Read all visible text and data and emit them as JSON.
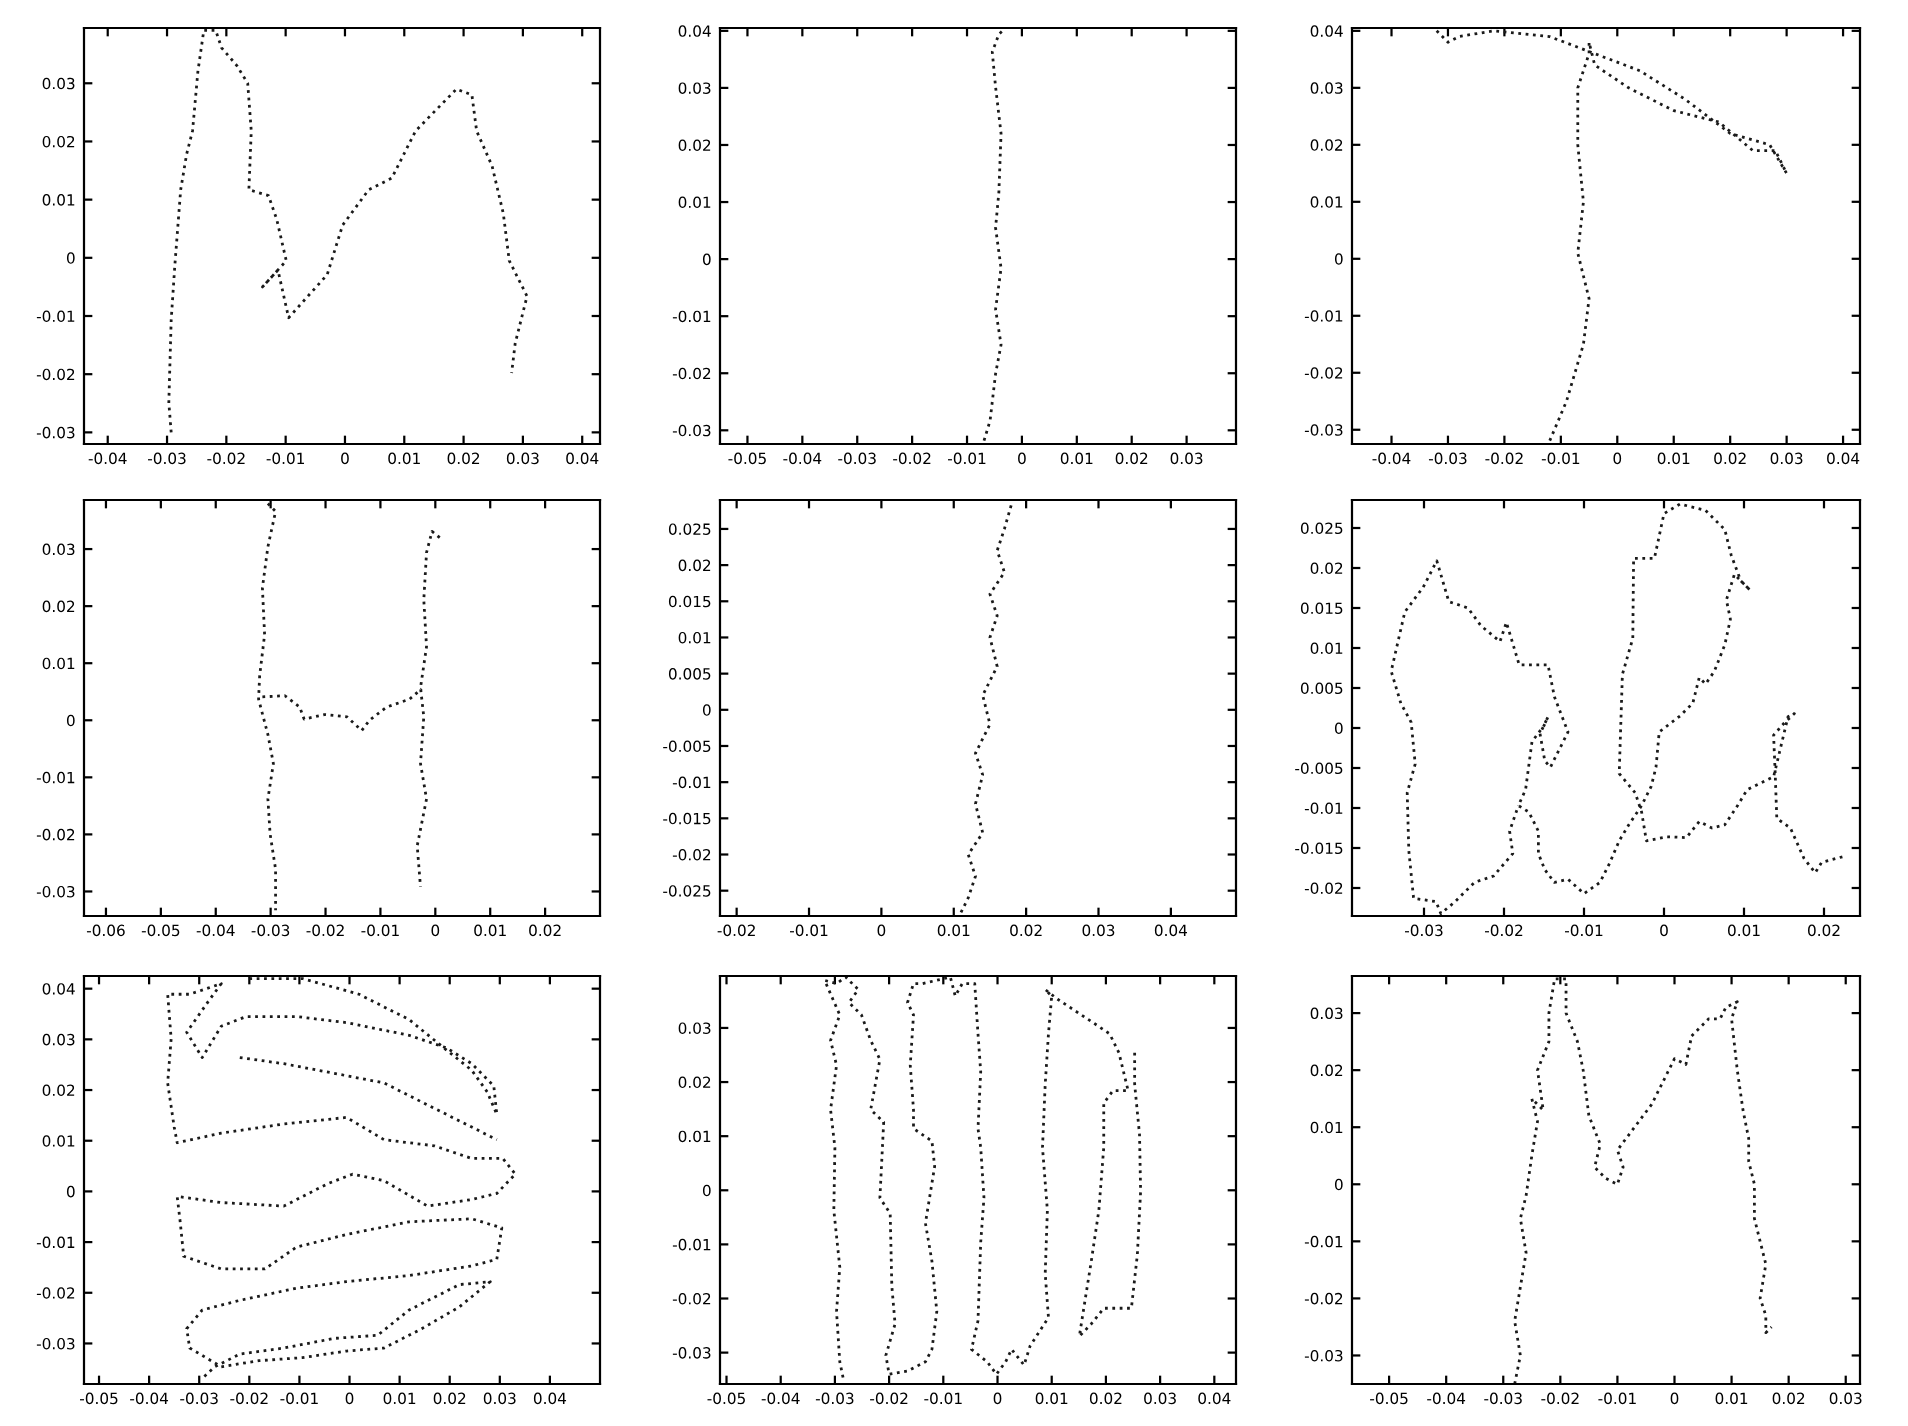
{
  "chart_data": [
    {
      "type": "line",
      "xlim": [
        -0.044,
        0.043
      ],
      "ylim": [
        -0.032,
        0.0395
      ],
      "xticks": [
        -0.04,
        -0.03,
        -0.02,
        -0.01,
        0,
        0.01,
        0.02,
        0.03,
        0.04
      ],
      "yticks": [
        -0.03,
        -0.02,
        -0.01,
        0,
        0.01,
        0.02,
        0.03
      ],
      "line_style": "dotted",
      "series": [
        {
          "color": "#1a1a1a",
          "x": [
            -0.0293,
            -0.0297,
            -0.0293,
            -0.0287,
            -0.0277,
            -0.0267,
            -0.0257,
            -0.0248,
            -0.0238,
            -0.0218,
            -0.0208,
            -0.0182,
            -0.0164,
            -0.0158,
            -0.0162,
            -0.0129,
            -0.0115,
            -0.0099,
            -0.0139,
            -0.0113,
            -0.0095,
            -0.003,
            -0.0004,
            0.004,
            0.0079,
            0.0119,
            0.0139,
            0.0188,
            0.0214,
            0.0222,
            0.0248,
            0.0267,
            0.0277,
            0.0307,
            0.0287,
            0.0281
          ],
          "values": [
            -0.03,
            -0.0249,
            -0.0107,
            -0.0015,
            0.0117,
            0.0178,
            0.0218,
            0.032,
            0.0391,
            0.0391,
            0.0361,
            0.033,
            0.03,
            0.0218,
            0.0117,
            0.0107,
            0.0066,
            -0.0005,
            -0.005,
            -0.0021,
            -0.0103,
            -0.0029,
            0.0056,
            0.0117,
            0.0137,
            0.0218,
            0.0239,
            0.029,
            0.028,
            0.0218,
            0.0158,
            0.0076,
            -0.0005,
            -0.0066,
            -0.0147,
            -0.0198
          ]
        }
      ]
    },
    {
      "type": "line",
      "xlim": [
        -0.055,
        0.039
      ],
      "ylim": [
        -0.0324,
        0.0405
      ],
      "xticks": [
        -0.05,
        -0.04,
        -0.03,
        -0.02,
        -0.01,
        0,
        0.01,
        0.02,
        0.03
      ],
      "yticks": [
        -0.03,
        -0.02,
        -0.01,
        0,
        0.01,
        0.02,
        0.03,
        0.04
      ],
      "line_style": "dotted",
      "series": [
        {
          "color": "#1a1a1a",
          "x": [
            -0.0069,
            -0.0058,
            -0.0048,
            -0.0038,
            -0.0048,
            -0.0038,
            -0.0048,
            -0.0042,
            -0.0038,
            -0.0048,
            -0.0054,
            -0.0042,
            -0.0033
          ],
          "values": [
            -0.0318,
            -0.0283,
            -0.0201,
            -0.015,
            -0.0088,
            -0.0016,
            0.0055,
            0.0117,
            0.022,
            0.0302,
            0.0363,
            0.0394,
            0.0402
          ]
        }
      ]
    },
    {
      "type": "line",
      "xlim": [
        -0.047,
        0.043
      ],
      "ylim": [
        -0.0325,
        0.0405
      ],
      "xticks": [
        -0.04,
        -0.03,
        -0.02,
        -0.01,
        0,
        0.01,
        0.02,
        0.03,
        0.04
      ],
      "yticks": [
        -0.03,
        -0.02,
        -0.01,
        0,
        0.01,
        0.02,
        0.03,
        0.04
      ],
      "line_style": "dotted",
      "series": [
        {
          "color": "#1a1a1a",
          "x": [
            -0.032,
            -0.03,
            -0.028,
            -0.022,
            -0.012,
            -0.004,
            0.004,
            0.012,
            0.02,
            0.027,
            0.03,
            0.028,
            0.024,
            0.018,
            0.01,
            0.002,
            -0.004,
            -0.005,
            -0.005,
            -0.007,
            -0.007,
            -0.006,
            -0.007,
            -0.005,
            -0.006,
            -0.009,
            -0.012
          ],
          "values": [
            0.04,
            0.038,
            0.039,
            0.04,
            0.039,
            0.036,
            0.033,
            0.028,
            0.022,
            0.02,
            0.015,
            0.019,
            0.019,
            0.024,
            0.026,
            0.03,
            0.034,
            0.038,
            0.036,
            0.03,
            0.02,
            0.01,
            0.001,
            -0.007,
            -0.015,
            -0.025,
            -0.032
          ]
        }
      ]
    },
    {
      "type": "line",
      "xlim": [
        -0.064,
        0.03
      ],
      "ylim": [
        -0.0343,
        0.0386
      ],
      "xticks": [
        -0.06,
        -0.05,
        -0.04,
        -0.03,
        -0.02,
        -0.01,
        0,
        0.01,
        0.02
      ],
      "yticks": [
        -0.03,
        -0.02,
        -0.01,
        0,
        0.01,
        0.02,
        0.03
      ],
      "line_style": "dotted",
      "series": [
        {
          "color": "#1a1a1a",
          "x": [
            -0.0305,
            -0.0291,
            -0.0305,
            -0.0315,
            -0.0311,
            -0.032,
            -0.0322,
            -0.0305,
            -0.0295,
            -0.0305,
            -0.0301,
            -0.0291,
            -0.0291
          ],
          "values": [
            0.038,
            0.0366,
            0.0304,
            0.0232,
            0.015,
            0.0078,
            0.0037,
            -0.0025,
            -0.0076,
            -0.0138,
            -0.0199,
            -0.0261,
            -0.0333
          ]
        },
        {
          "color": "#1a1a1a",
          "x": [
            0.0008,
            -0.0006,
            -0.0016,
            -0.0021,
            -0.0016,
            -0.0027,
            -0.0021,
            -0.0027,
            -0.0016,
            -0.0033,
            -0.0027
          ],
          "values": [
            0.032,
            0.0331,
            0.0294,
            0.0211,
            0.0129,
            0.0057,
            0.0006,
            -0.0076,
            -0.0138,
            -0.022,
            -0.0292
          ]
        },
        {
          "color": "#1a1a1a",
          "x": [
            -0.0315,
            -0.0274,
            -0.0247,
            -0.0239,
            -0.0202,
            -0.0161,
            -0.0134,
            -0.012,
            -0.0089,
            -0.0047,
            -0.0025
          ],
          "values": [
            0.0041,
            0.0043,
            0.0023,
            0.0002,
            0.001,
            0.0006,
            -0.0018,
            0,
            0.0023,
            0.0037,
            0.0055
          ]
        }
      ]
    },
    {
      "type": "line",
      "xlim": [
        -0.0223,
        0.049
      ],
      "ylim": [
        -0.0285,
        0.029
      ],
      "xticks": [
        -0.02,
        -0.01,
        0,
        0.01,
        0.02,
        0.03,
        0.04
      ],
      "yticks": [
        -0.025,
        -0.02,
        -0.015,
        -0.01,
        -0.005,
        0,
        0.005,
        0.01,
        0.015,
        0.02,
        0.025
      ],
      "line_style": "dotted",
      "series": [
        {
          "color": "#1a1a1a",
          "x": [
            0.011,
            0.012,
            0.013,
            0.012,
            0.014,
            0.013,
            0.014,
            0.013,
            0.015,
            0.014,
            0.016,
            0.015,
            0.016,
            0.015,
            0.017,
            0.016,
            0.017,
            0.018
          ],
          "values": [
            -0.028,
            -0.026,
            -0.023,
            -0.02,
            -0.017,
            -0.013,
            -0.009,
            -0.006,
            -0.002,
            0.002,
            0.006,
            0.01,
            0.013,
            0.016,
            0.019,
            0.022,
            0.025,
            0.0285
          ]
        }
      ]
    },
    {
      "type": "line",
      "xlim": [
        -0.039,
        0.0245
      ],
      "ylim": [
        -0.0235,
        0.0285
      ],
      "xticks": [
        -0.03,
        -0.02,
        -0.01,
        0,
        0.01,
        0.02
      ],
      "yticks": [
        -0.02,
        -0.015,
        -0.01,
        -0.005,
        0,
        0.005,
        0.01,
        0.015,
        0.02,
        0.025
      ],
      "line_style": "dotted",
      "series": [
        {
          "color": "#1a1a1a",
          "x": [
            0.0223,
            0.0197,
            0.0189,
            0.0175,
            0.0158,
            0.0141,
            0.0139,
            0.0137,
            0.015,
            0.0163,
            0.0155,
            0.0137,
            0.0104,
            0.0092,
            0.0076,
            0.006,
            0.0044,
            0.0028,
            0.0004,
            -0.0022,
            -0.0028,
            -0.0036,
            -0.0056,
            -0.0052,
            -0.0039,
            -0.0038,
            -0.0012,
            0,
            0.002,
            0.0052,
            0.0076,
            0.0084,
            0.0096,
            0.0108,
            0.0088,
            0.0078,
            0.0083,
            0.0076,
            0.0063,
            0.0052,
            0.0044,
            0.0036,
            0.002,
            -0.0006,
            -0.001,
            -0.0016,
            -0.0028,
            -0.0044,
            -0.0056,
            -0.0068,
            -0.008,
            -0.01,
            -0.012,
            -0.0137,
            -0.0149,
            -0.0157,
            -0.0157,
            -0.0169,
            -0.0182,
            -0.0173,
            -0.0165,
            -0.015,
            -0.0145,
            -0.0155,
            -0.0149,
            -0.0142,
            -0.012,
            -0.0137,
            -0.0145,
            -0.0181,
            -0.0197,
            -0.0205,
            -0.0229,
            -0.0245,
            -0.0269,
            -0.0284,
            -0.0301,
            -0.0324,
            -0.0341,
            -0.0329,
            -0.0316,
            -0.0311,
            -0.0321,
            -0.0319,
            -0.0313,
            -0.0285,
            -0.0279,
            -0.0261,
            -0.0237,
            -0.0213,
            -0.0189,
            -0.0193,
            -0.0182
          ],
          "values": [
            -0.0161,
            -0.0168,
            -0.0181,
            -0.0163,
            -0.0125,
            -0.0113,
            -0.0057,
            -0.0009,
            0.0006,
            0.0018,
            0.0014,
            -0.0061,
            -0.0077,
            -0.0097,
            -0.0121,
            -0.0125,
            -0.0117,
            -0.0137,
            -0.0136,
            -0.0141,
            -0.0105,
            -0.0081,
            -0.0057,
            0.0067,
            0.0112,
            0.0212,
            0.0212,
            0.0268,
            0.028,
            0.0272,
            0.0248,
            0.0216,
            0.0184,
            0.0172,
            0.0192,
            0.016,
            0.0136,
            0.0104,
            0.0071,
            0.0055,
            0.0063,
            0.0031,
            0.0015,
            -0.0005,
            -0.0049,
            -0.0073,
            -0.0097,
            -0.0121,
            -0.0141,
            -0.0169,
            -0.0193,
            -0.0207,
            -0.0189,
            -0.0193,
            -0.0177,
            -0.0157,
            -0.0129,
            -0.0105,
            -0.0097,
            -0.0077,
            -0.0017,
            0.0003,
            0.0014,
            -0.0007,
            -0.0041,
            -0.0049,
            -0.0005,
            0.0039,
            0.0079,
            0.0079,
            0.0132,
            0.0108,
            0.0128,
            0.015,
            0.0158,
            0.0209,
            0.0176,
            0.0145,
            0.0071,
            0.0031,
            0.0007,
            -0.0045,
            -0.0081,
            -0.0153,
            -0.0213,
            -0.0217,
            -0.0232,
            -0.0217,
            -0.0193,
            -0.0185,
            -0.0157,
            -0.0129,
            -0.0097
          ]
        }
      ]
    },
    {
      "type": "line",
      "xlim": [
        -0.053,
        0.05
      ],
      "ylim": [
        -0.038,
        0.0425
      ],
      "xticks": [
        -0.05,
        -0.04,
        -0.03,
        -0.02,
        -0.01,
        0,
        0.01,
        0.02,
        0.03,
        0.04
      ],
      "yticks": [
        -0.03,
        -0.02,
        -0.01,
        0,
        0.01,
        0.02,
        0.03,
        0.04
      ],
      "line_style": "dotted",
      "series": [
        {
          "color": "#1a1a1a",
          "x": [
            -0.02,
            -0.0094,
            0.0019,
            0.0119,
            0.0181,
            0.0244,
            0.0275,
            0.0294,
            0.0288,
            0.0244,
            0.0194,
            0.0119,
            -0.0006,
            -0.0106,
            -0.0206,
            -0.0256,
            -0.0294,
            -0.0325,
            -0.0281,
            -0.0256,
            -0.0319,
            -0.0363,
            -0.0356,
            -0.0363,
            -0.035,
            -0.0344,
            -0.0256,
            -0.0131,
            -0.0006,
            0.0069,
            0.0169,
            0.0244,
            0.0306,
            0.0331,
            0.0294,
            0.0244,
            0.0156,
            0.0069,
            0.0006,
            -0.0044,
            -0.0131,
            -0.0256,
            -0.0344,
            -0.0338,
            -0.0331,
            -0.0256,
            -0.0169,
            -0.0106,
            -0.0006,
            0.0119,
            0.0244,
            0.0304,
            0.0294,
            0.0244,
            0.0119,
            -0.0006,
            -0.0106,
            -0.0219,
            -0.0294,
            -0.0325,
            -0.0319,
            -0.0256,
            -0.0181,
            -0.0094,
            -0.0006,
            0.0069,
            0.0144,
            0.0219,
            0.0281,
            0.0219,
            0.0119,
            0.0056,
            -0.0031,
            -0.0131,
            -0.0219,
            -0.0269,
            -0.0294
          ],
          "values": [
            0.042,
            0.042,
            0.0389,
            0.0339,
            0.0289,
            0.0239,
            0.0196,
            0.0152,
            0.0208,
            0.0252,
            0.0283,
            0.0308,
            0.0333,
            0.0345,
            0.0345,
            0.0326,
            0.0264,
            0.0314,
            0.0376,
            0.041,
            0.0389,
            0.0389,
            0.0301,
            0.0214,
            0.0127,
            0.0096,
            0.0115,
            0.0133,
            0.0146,
            0.0102,
            0.009,
            0.0065,
            0.0065,
            0.0034,
            -0.0004,
            -0.0016,
            -0.0029,
            0.0021,
            0.0034,
            0.0015,
            -0.0029,
            -0.0022,
            -0.001,
            -0.006,
            -0.0128,
            -0.0153,
            -0.0153,
            -0.011,
            -0.0085,
            -0.006,
            -0.0054,
            -0.0072,
            -0.0134,
            -0.0147,
            -0.0166,
            -0.0178,
            -0.0191,
            -0.0215,
            -0.0234,
            -0.0271,
            -0.0309,
            -0.0346,
            -0.0334,
            -0.0328,
            -0.0315,
            -0.0309,
            -0.0271,
            -0.0228,
            -0.0178,
            -0.0184,
            -0.0234,
            -0.0284,
            -0.029,
            -0.0309,
            -0.0321,
            -0.0346,
            -0.0369
          ]
        },
        {
          "color": "#1a1a1a",
          "x": [
            -0.0219,
            -0.0131,
            -0.0031,
            0.0069,
            0.0169,
            0.0244,
            0.0294
          ],
          "values": [
            0.0264,
            0.0252,
            0.0233,
            0.0214,
            0.0164,
            0.0127,
            0.0102
          ]
        }
      ]
    },
    {
      "type": "line",
      "xlim": [
        -0.0512,
        0.044
      ],
      "ylim": [
        -0.0358,
        0.0396
      ],
      "xticks": [
        -0.05,
        -0.04,
        -0.03,
        -0.02,
        -0.01,
        0,
        0.01,
        0.02,
        0.03,
        0.04
      ],
      "yticks": [
        -0.03,
        -0.02,
        -0.01,
        0,
        0.01,
        0.02,
        0.03
      ],
      "line_style": "dotted",
      "series": [
        {
          "color": "#1a1a1a",
          "x": [
            -0.0285,
            -0.0291,
            -0.0297,
            -0.0291,
            -0.0302,
            -0.03,
            -0.0308,
            -0.0297,
            -0.0308,
            -0.0291,
            -0.0319,
            -0.0297,
            -0.028,
            -0.0257,
            -0.0274,
            -0.0251,
            -0.0234,
            -0.0217,
            -0.0234,
            -0.021,
            -0.0217,
            -0.0198,
            -0.0195,
            -0.0189,
            -0.0206,
            -0.02,
            -0.0166,
            -0.0133,
            -0.0121,
            -0.0112,
            -0.0121,
            -0.0133,
            -0.0116,
            -0.0121,
            -0.0155,
            -0.0155,
            -0.0161,
            -0.0155,
            -0.0166,
            -0.0155,
            -0.0138,
            -0.0087,
            -0.0078,
            -0.0065,
            -0.0042,
            -0.0036,
            -0.0031,
            -0.0036,
            -0.0031,
            -0.0025,
            -0.0031,
            -0.0036,
            -0.0048,
            -0.0019,
            -0.0002,
            0.0015,
            0.0026,
            0.0049,
            0.006,
            0.0094,
            0.0088,
            0.0092,
            0.0083,
            0.0088,
            0.0094,
            0.01,
            0.0088,
            0.0111,
            0.0173,
            0.0207,
            0.0224,
            0.0241,
            0.0213,
            0.0196,
            0.0196,
            0.0187,
            0.0173,
            0.0162,
            0.0151,
            0.0173,
            0.0196,
            0.0247,
            0.0258,
            0.0264,
            0.0262,
            0.0253,
            0.0253
          ],
          "values": [
            -0.0346,
            -0.0317,
            -0.0224,
            -0.0142,
            -0.0037,
            0.0079,
            0.0149,
            0.0231,
            0.0277,
            0.0324,
            0.0388,
            0.0382,
            0.0394,
            0.0371,
            0.0347,
            0.0324,
            0.0277,
            0.0242,
            0.0149,
            0.0126,
            -0.0014,
            -0.0043,
            -0.0177,
            -0.0247,
            -0.0305,
            -0.034,
            -0.0334,
            -0.0317,
            -0.0294,
            -0.0224,
            -0.0131,
            -0.0061,
            0.0044,
            0.0091,
            0.0114,
            0.0149,
            0.0231,
            0.0324,
            0.0347,
            0.0382,
            0.0382,
            0.0394,
            0.0359,
            0.0382,
            0.0382,
            0.0289,
            0.0219,
            0.0114,
            0.0079,
            -0.0014,
            -0.0096,
            -0.0241,
            -0.0294,
            -0.0317,
            -0.034,
            -0.0317,
            -0.0294,
            -0.0323,
            -0.0288,
            -0.0235,
            -0.0154,
            -0.0037,
            0.0079,
            0.0196,
            0.0289,
            0.0359,
            0.0371,
            0.0353,
            0.0312,
            0.0289,
            0.0254,
            0.0184,
            0.0184,
            0.0161,
            0.0079,
            -0.0037,
            -0.0131,
            -0.02,
            -0.027,
            -0.0247,
            -0.0218,
            -0.0218,
            -0.0119,
            -0.0002,
            0.0103,
            0.0196,
            0.026
          ]
        }
      ]
    },
    {
      "type": "line",
      "xlim": [
        -0.0565,
        0.0325
      ],
      "ylim": [
        -0.035,
        0.0365
      ],
      "xticks": [
        -0.05,
        -0.04,
        -0.03,
        -0.02,
        -0.01,
        0,
        0.01,
        0.02,
        0.03
      ],
      "yticks": [
        -0.03,
        -0.02,
        -0.01,
        0,
        0.01,
        0.02,
        0.03
      ],
      "line_style": "dotted",
      "series": [
        {
          "color": "#1a1a1a",
          "x": [
            -0.028,
            -0.027,
            -0.028,
            -0.027,
            -0.026,
            -0.027,
            -0.026,
            -0.025,
            -0.024,
            -0.025,
            -0.023,
            -0.024,
            -0.022,
            -0.022,
            -0.021,
            -0.019,
            -0.019,
            -0.017,
            -0.016,
            -0.015,
            -0.013,
            -0.014,
            -0.012,
            -0.01,
            -0.009,
            -0.01,
            -0.007,
            -0.004,
            -0.002,
            0,
            0.002,
            0.003,
            0.006,
            0.008,
            0.009,
            0.011,
            0.01,
            0.011,
            0.012,
            0.013,
            0.013,
            0.014,
            0.014,
            0.015,
            0.016,
            0.015,
            0.016,
            0.016,
            0.017
          ],
          "values": [
            -0.035,
            -0.03,
            -0.024,
            -0.018,
            -0.012,
            -0.006,
            -0.002,
            0.005,
            0.011,
            0.015,
            0.013,
            0.02,
            0.025,
            0.03,
            0.036,
            0.036,
            0.03,
            0.025,
            0.02,
            0.012,
            0.007,
            0.003,
            0.001,
            0,
            0.003,
            0.006,
            0.01,
            0.014,
            0.018,
            0.022,
            0.021,
            0.026,
            0.029,
            0.029,
            0.031,
            0.032,
            0.029,
            0.02,
            0.013,
            0.008,
            0.004,
            0,
            -0.006,
            -0.01,
            -0.014,
            -0.02,
            -0.023,
            -0.026,
            -0.025
          ]
        }
      ]
    }
  ]
}
